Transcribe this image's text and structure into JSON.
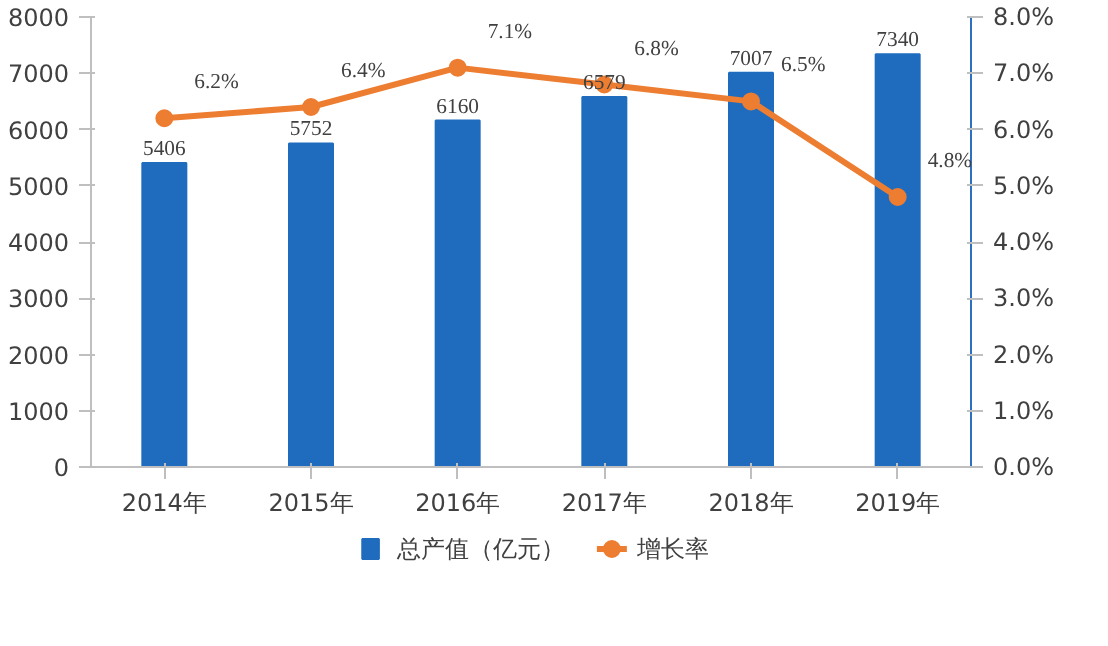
{
  "chart_data": {
    "type": "bar",
    "categories": [
      "2014年",
      "2015年",
      "2016年",
      "2017年",
      "2018年",
      "2019年"
    ],
    "series": [
      {
        "name": "总产值（亿元）",
        "type": "bar",
        "color": "#1f6cbf",
        "values": [
          5406,
          5752,
          6160,
          6579,
          7007,
          7340
        ]
      },
      {
        "name": "增长率",
        "type": "line",
        "axis": "y2",
        "color": "#ed7d31",
        "values": [
          6.2,
          6.4,
          7.1,
          6.8,
          6.5,
          4.8
        ],
        "value_labels": [
          "6.2%",
          "6.4%",
          "7.1%",
          "6.8%",
          "6.5%",
          "4.8%"
        ]
      }
    ],
    "ylim": [
      0,
      8000
    ],
    "yticks": [
      0,
      1000,
      2000,
      3000,
      4000,
      5000,
      6000,
      7000,
      8000
    ],
    "y2lim": [
      0,
      8
    ],
    "y2ticks": [
      {
        "value": 0,
        "label": "0.0%"
      },
      {
        "value": 1,
        "label": "1.0%"
      },
      {
        "value": 2,
        "label": "2.0%"
      },
      {
        "value": 3,
        "label": "3.0%"
      },
      {
        "value": 4,
        "label": "4.0%"
      },
      {
        "value": 5,
        "label": "5.0%"
      },
      {
        "value": 6,
        "label": "6.0%"
      },
      {
        "value": 7,
        "label": "7.0%"
      },
      {
        "value": 8,
        "label": "8.0%"
      }
    ],
    "data_labels": true,
    "marker": "circle",
    "legend": "bottom",
    "grid": false
  }
}
